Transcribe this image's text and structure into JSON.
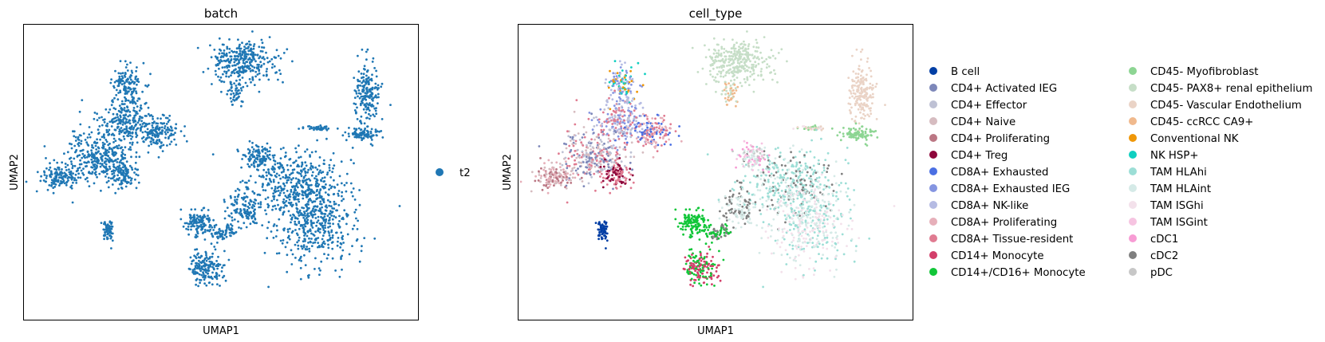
{
  "chart_data": [
    {
      "type": "scatter",
      "title": "batch",
      "xlabel": "UMAP1",
      "ylabel": "UMAP2",
      "grid": false,
      "legend_placement": "right",
      "series": [
        {
          "name": "t2",
          "color": "#1f77b4"
        }
      ]
    },
    {
      "type": "scatter",
      "title": "cell_type",
      "xlabel": "UMAP1",
      "ylabel": "UMAP2",
      "grid": false,
      "legend_placement": "right (two columns)",
      "series": [
        {
          "name": "B cell",
          "color": "#023fa5"
        },
        {
          "name": "CD4+ Activated IEG",
          "color": "#7d87b9"
        },
        {
          "name": "CD4+ Effector",
          "color": "#bec1d4"
        },
        {
          "name": "CD4+ Naive",
          "color": "#d6bcc0"
        },
        {
          "name": "CD4+ Proliferating",
          "color": "#bb7784"
        },
        {
          "name": "CD4+ Treg",
          "color": "#8e063b"
        },
        {
          "name": "CD8A+ Exhausted",
          "color": "#4a6fe3"
        },
        {
          "name": "CD8A+ Exhausted IEG",
          "color": "#8595e1"
        },
        {
          "name": "CD8A+ NK-like",
          "color": "#b5bbe3"
        },
        {
          "name": "CD8A+ Proliferating",
          "color": "#e6afb9"
        },
        {
          "name": "CD8A+ Tissue-resident",
          "color": "#e07b91"
        },
        {
          "name": "CD14+ Monocyte",
          "color": "#d33f6a"
        },
        {
          "name": "CD14+/CD16+ Monocyte",
          "color": "#11c638"
        },
        {
          "name": "CD45- Myofibroblast",
          "color": "#8dd593"
        },
        {
          "name": "CD45- PAX8+ renal epithelium",
          "color": "#c6dec7"
        },
        {
          "name": "CD45- Vascular Endothelium",
          "color": "#ead3c6"
        },
        {
          "name": "CD45- ccRCC CA9+",
          "color": "#f0b98d"
        },
        {
          "name": "Conventional NK",
          "color": "#ef9708"
        },
        {
          "name": "NK HSP+",
          "color": "#0fcfc0"
        },
        {
          "name": "TAM HLAhi",
          "color": "#9cded6"
        },
        {
          "name": "TAM HLAint",
          "color": "#d5eae7"
        },
        {
          "name": "TAM ISGhi",
          "color": "#f3e1eb"
        },
        {
          "name": "TAM ISGint",
          "color": "#f6c4e1"
        },
        {
          "name": "cDC1",
          "color": "#f79cd4"
        },
        {
          "name": "cDC2",
          "color": "#7f7f7f"
        },
        {
          "name": "pDC",
          "color": "#c7c7c7"
        }
      ]
    }
  ]
}
